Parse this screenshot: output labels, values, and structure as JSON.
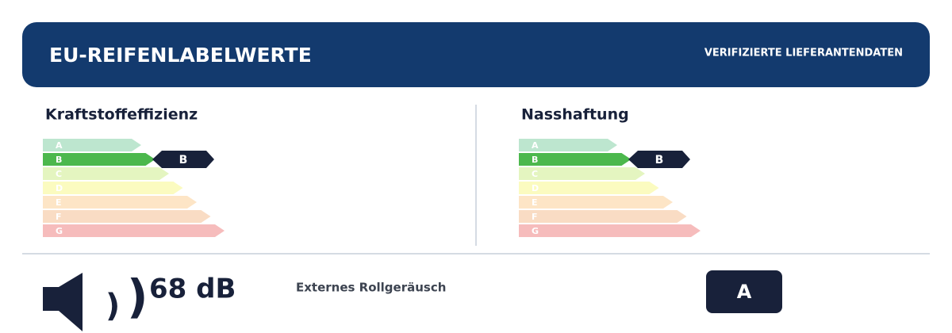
{
  "header": {
    "title": "EU-REIFENLABELWERTE",
    "badge": "VERIFIZIERTE LIEFERANTENDATEN"
  },
  "panels": [
    {
      "title": "Kraftstoffeffizienz",
      "classes": [
        "A",
        "B",
        "C",
        "D",
        "E",
        "F",
        "G"
      ],
      "rating": "B"
    },
    {
      "title": "Nasshaftung",
      "classes": [
        "A",
        "B",
        "C",
        "D",
        "E",
        "F",
        "G"
      ],
      "rating": "B"
    }
  ],
  "noise": {
    "value": "68 dB",
    "label": "Externes Rollgeräusch",
    "class": "A"
  }
}
